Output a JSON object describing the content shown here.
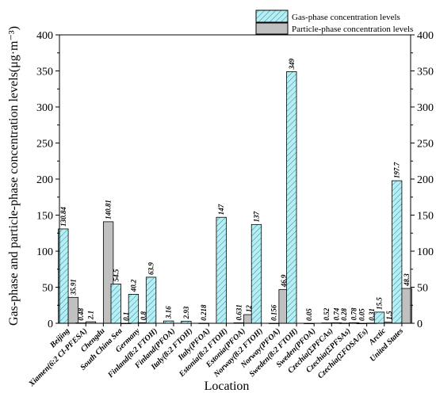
{
  "chart_data": {
    "type": "bar",
    "xlabel": "Location",
    "ylabel": "Gas-phase and particle-phase concentration levels(μg·m⁻³)",
    "ylim": [
      0,
      400
    ],
    "yticks": [
      0,
      50,
      100,
      150,
      200,
      250,
      300,
      350,
      400
    ],
    "grid": false,
    "legend_position": "top-right",
    "categories": [
      "Beijing",
      "Xiamen(6:2 Cl-PFESA)",
      "Chengdu",
      "South China Sea",
      "Germany",
      "Finland(8:2 FTOH)",
      "Finland(PFOA)",
      "Italy(8:2 FTOH)",
      "Italy(PFOA)",
      "Estonia(8:2 FTOH)",
      "Estonia(PFOA)",
      "Norway(8:2 FTOH)",
      "Norway(PFOA)",
      "Sweden(8:2 FTOH)",
      "Sweden(PFOA)",
      "Czechia(ΣPFCAs)",
      "Czechia(ΣPFSAs)",
      "Czechia(ΣFOSA/Es)",
      "Arctic",
      "United States"
    ],
    "series": [
      {
        "name": "Gas-phase concentration levels",
        "color": "#b6eef4",
        "pattern": "diagonal-hatch",
        "values": [
          130.84,
          0.48,
          null,
          54.5,
          40.2,
          63.9,
          3.16,
          2.93,
          0.218,
          147,
          0.631,
          137,
          0.156,
          349,
          0.05,
          0.52,
          0.28,
          0.05,
          15.5,
          197.7
        ],
        "labels": [
          "130.84",
          "0.48",
          "",
          "54.5",
          "40.2",
          "63.9",
          "3.16",
          "2.93",
          "0.218",
          "147",
          "0.631",
          "137",
          "0.156",
          "349",
          "0.05",
          "0.52",
          "0.28",
          "0.05",
          "15.5",
          "197.7"
        ]
      },
      {
        "name": "Particle-phase concentration levels",
        "color": "#c0c0c0",
        "pattern": "solid",
        "values": [
          35.91,
          2.1,
          140.81,
          0.1,
          0.8,
          null,
          null,
          null,
          null,
          null,
          12,
          null,
          46.9,
          null,
          null,
          0.74,
          0.78,
          0.31,
          1.5,
          48.3
        ],
        "labels": [
          "35.91",
          "2.1",
          "140.81",
          "0.1",
          "0.8",
          "",
          "",
          "",
          "",
          "",
          "12",
          "",
          "46.9",
          "",
          "",
          "0.74",
          "0.78",
          "0.31",
          "1.5",
          "48.3"
        ]
      }
    ]
  }
}
